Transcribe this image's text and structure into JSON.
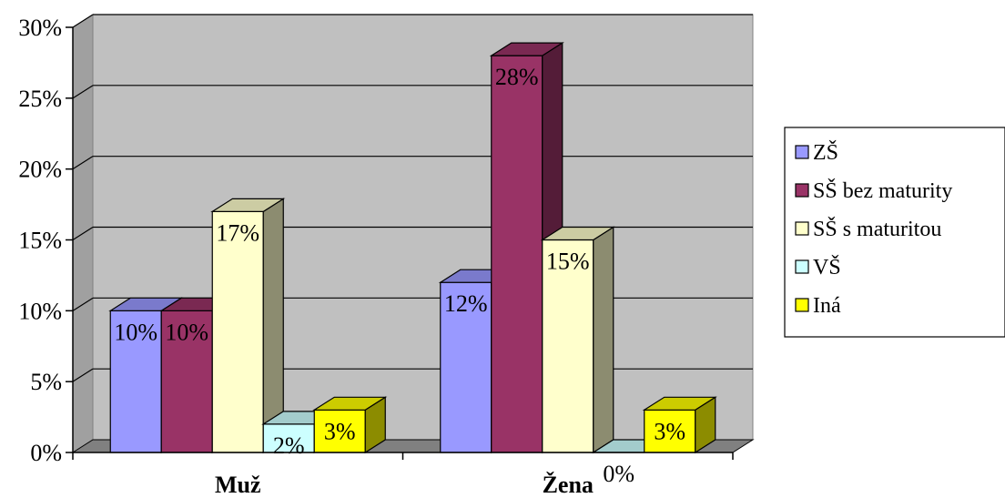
{
  "chart_data": {
    "type": "bar",
    "style": "3d-clustered-column",
    "categories": [
      "Muž",
      "Žena"
    ],
    "series": [
      {
        "name": "ZŠ",
        "values": [
          10,
          12
        ],
        "labels": [
          "10%",
          "12%"
        ],
        "color": "#9999ff"
      },
      {
        "name": "SŠ bez maturity",
        "values": [
          10,
          28
        ],
        "labels": [
          "10%",
          "28%"
        ],
        "color": "#993366"
      },
      {
        "name": "SŠ s maturitou",
        "values": [
          17,
          15
        ],
        "labels": [
          "17%",
          "15%"
        ],
        "color": "#ffffcc"
      },
      {
        "name": "VŠ",
        "values": [
          2,
          0
        ],
        "labels": [
          "2%",
          "0%"
        ],
        "color": "#ccffff"
      },
      {
        "name": "Iná",
        "values": [
          3,
          3
        ],
        "labels": [
          "3%",
          "3%"
        ],
        "color": "#ffff00"
      }
    ],
    "ylim": [
      0,
      30
    ],
    "y_ticks": [
      "0%",
      "5%",
      "10%",
      "15%",
      "20%",
      "25%",
      "30%"
    ],
    "grid": true,
    "legend": "right",
    "wall_color": "#c0c0c0",
    "floor_color": "#808080"
  }
}
